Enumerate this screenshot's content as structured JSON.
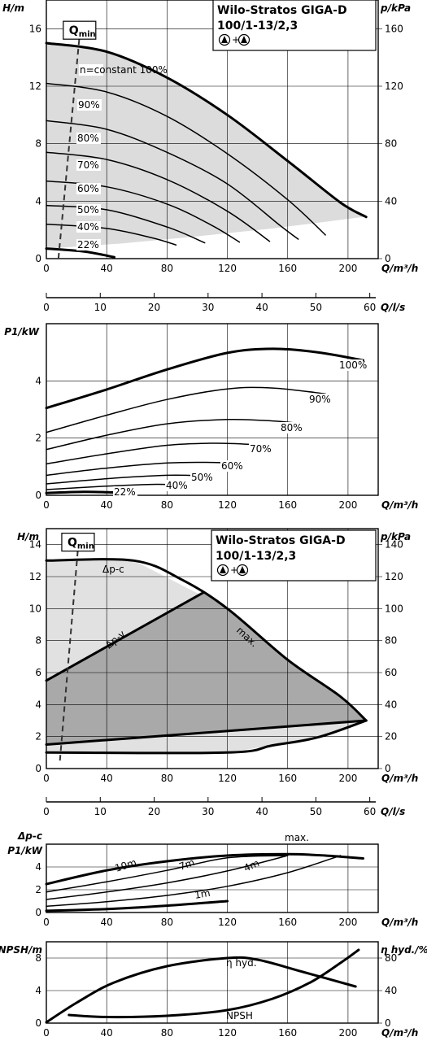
{
  "chart_data": [
    {
      "type": "line",
      "id": "hq1",
      "title": "Wilo-Stratos GIGA-D",
      "subtitle": "100/1-13/2,3",
      "ylabel": "H/m",
      "y2label": "p/kPa",
      "xlabel": "Q/m³/h",
      "xlim": [
        0,
        220
      ],
      "ylim": [
        0,
        18
      ],
      "y2lim": [
        0,
        180
      ],
      "xticks": [
        0,
        40,
        80,
        120,
        160,
        200
      ],
      "yticks": [
        0,
        4,
        8,
        12,
        16
      ],
      "y2ticks": [
        0,
        40,
        80,
        120,
        160
      ],
      "grid": true,
      "qmin_label": "Q",
      "qmin_sub": "min",
      "qmin_line": [
        [
          8,
          0
        ],
        [
          22,
          15.5
        ]
      ],
      "band_lower": [
        [
          0,
          0.7
        ],
        [
          50,
          1.05
        ],
        [
          100,
          1.55
        ],
        [
          150,
          2.1
        ],
        [
          210,
          2.9
        ]
      ],
      "series": [
        {
          "name": "n=constant 100%",
          "weight": "thick",
          "x": [
            0,
            40,
            80,
            120,
            160,
            195,
            212
          ],
          "y": [
            15,
            14.4,
            12.6,
            10,
            6.8,
            3.9,
            2.9
          ]
        },
        {
          "name": "90%",
          "weight": "thin",
          "x": [
            0,
            40,
            80,
            120,
            160,
            185
          ],
          "y": [
            12.2,
            11.6,
            9.9,
            7.3,
            4.1,
            1.65
          ]
        },
        {
          "name": "80%",
          "weight": "thin",
          "x": [
            0,
            40,
            80,
            120,
            155,
            167
          ],
          "y": [
            9.6,
            9,
            7.4,
            5.2,
            2.3,
            1.35
          ]
        },
        {
          "name": "70%",
          "weight": "thin",
          "x": [
            0,
            40,
            80,
            120,
            148
          ],
          "y": [
            7.4,
            6.9,
            5.5,
            3.3,
            1.2
          ]
        },
        {
          "name": "60%",
          "weight": "thin",
          "x": [
            0,
            40,
            80,
            110,
            128
          ],
          "y": [
            5.4,
            5,
            3.8,
            2.3,
            1.15
          ]
        },
        {
          "name": "50%",
          "weight": "thin",
          "x": [
            0,
            40,
            80,
            105
          ],
          "y": [
            3.7,
            3.4,
            2.2,
            1.1
          ]
        },
        {
          "name": "40%",
          "weight": "thin",
          "x": [
            0,
            40,
            70,
            86
          ],
          "y": [
            2.4,
            2.1,
            1.45,
            0.95
          ]
        },
        {
          "name": "22%",
          "weight": "thick",
          "x": [
            0,
            25,
            45
          ],
          "y": [
            0.7,
            0.5,
            0.1
          ]
        }
      ]
    },
    {
      "type": "axis",
      "id": "ls1",
      "xlabel": "Q/l/s",
      "xlim": [
        0,
        61.11
      ],
      "xticks": [
        0,
        10,
        20,
        30,
        40,
        50,
        60
      ]
    },
    {
      "type": "line",
      "id": "p1a",
      "ylabel": "P1/kW",
      "xlabel": "Q/m³/h",
      "xlim": [
        0,
        220
      ],
      "ylim": [
        0,
        6
      ],
      "xticks": [
        0,
        40,
        80,
        120,
        160,
        200
      ],
      "yticks": [
        0,
        2,
        4
      ],
      "grid": true,
      "series": [
        {
          "name": "100%",
          "weight": "thick",
          "x": [
            0,
            40,
            80,
            120,
            150,
            180,
            210
          ],
          "y": [
            3.05,
            3.7,
            4.4,
            4.98,
            5.12,
            5.0,
            4.72
          ]
        },
        {
          "name": "90%",
          "weight": "thin",
          "x": [
            0,
            40,
            80,
            120,
            150,
            185
          ],
          "y": [
            2.2,
            2.8,
            3.35,
            3.72,
            3.75,
            3.55
          ]
        },
        {
          "name": "80%",
          "weight": "thin",
          "x": [
            0,
            40,
            80,
            120,
            150,
            170
          ],
          "y": [
            1.6,
            2.1,
            2.5,
            2.65,
            2.6,
            2.5
          ]
        },
        {
          "name": "70%",
          "weight": "thin",
          "x": [
            0,
            40,
            80,
            110,
            135,
            150
          ],
          "y": [
            1.1,
            1.45,
            1.75,
            1.82,
            1.78,
            1.7
          ]
        },
        {
          "name": "60%",
          "weight": "thin",
          "x": [
            0,
            40,
            80,
            110,
            130
          ],
          "y": [
            0.7,
            0.95,
            1.13,
            1.15,
            1.1
          ]
        },
        {
          "name": "50%",
          "weight": "thin",
          "x": [
            0,
            40,
            80,
            105
          ],
          "y": [
            0.4,
            0.58,
            0.7,
            0.68
          ]
        },
        {
          "name": "40%",
          "weight": "thin",
          "x": [
            0,
            40,
            70,
            85
          ],
          "y": [
            0.2,
            0.32,
            0.38,
            0.37
          ]
        },
        {
          "name": "22%",
          "weight": "thick",
          "x": [
            0,
            25,
            45
          ],
          "y": [
            0.08,
            0.12,
            0.1
          ]
        }
      ]
    },
    {
      "type": "area",
      "id": "hq2",
      "title": "Wilo-Stratos GIGA-D",
      "subtitle": "100/1-13/2,3",
      "ylabel": "H/m",
      "y2label": "p/kPa",
      "xlabel": "Q/m³/h",
      "xlim": [
        0,
        220
      ],
      "ylim": [
        0,
        15
      ],
      "y2lim": [
        0,
        150
      ],
      "xticks": [
        0,
        40,
        80,
        120,
        160,
        200
      ],
      "yticks": [
        0,
        2,
        4,
        6,
        8,
        10,
        12,
        14
      ],
      "y2ticks": [
        0,
        20,
        40,
        60,
        80,
        100,
        120,
        140
      ],
      "grid": true,
      "qmin_label": "Q",
      "qmin_sub": "min",
      "qmin_line": [
        [
          9,
          0.5
        ],
        [
          21,
          13.8
        ]
      ],
      "outer_region": [
        [
          0,
          13
        ],
        [
          58,
          13
        ],
        [
          120,
          10
        ],
        [
          160,
          6.8
        ],
        [
          195,
          4.5
        ],
        [
          212,
          3
        ],
        [
          180,
          1.95
        ],
        [
          150,
          1.45
        ],
        [
          120,
          1
        ],
        [
          0,
          1
        ]
      ],
      "inner_region": [
        [
          0,
          5.5
        ],
        [
          104,
          11
        ],
        [
          120,
          10
        ],
        [
          160,
          6.8
        ],
        [
          195,
          4.5
        ],
        [
          212,
          3
        ],
        [
          0,
          1.5
        ]
      ],
      "annotations": [
        "Δp-c",
        "Δp-v",
        "max."
      ],
      "lines": [
        {
          "name": "max.",
          "weight": "thick",
          "x": [
            0,
            58,
            90,
            120,
            160,
            195,
            212
          ],
          "y": [
            13,
            13,
            11.8,
            10,
            6.8,
            4.5,
            3
          ]
        },
        {
          "name": "Δp-v",
          "weight": "thick",
          "x": [
            0,
            104
          ],
          "y": [
            5.5,
            11
          ]
        },
        {
          "name": "min",
          "weight": "thick",
          "x": [
            0,
            120,
            150,
            180,
            212
          ],
          "y": [
            1,
            1,
            1.45,
            1.95,
            3
          ]
        },
        {
          "name": "lower",
          "weight": "thick",
          "x": [
            0,
            212
          ],
          "y": [
            1.5,
            3
          ]
        }
      ]
    },
    {
      "type": "axis",
      "id": "ls2",
      "xlabel": "Q/l/s",
      "xlim": [
        0,
        61.11
      ],
      "xticks": [
        0,
        10,
        20,
        30,
        40,
        50,
        60
      ]
    },
    {
      "type": "line",
      "id": "p1b",
      "ylabel_top": "Δp-c",
      "ylabel": "P1/kW",
      "xlabel": "Q/m³/h",
      "xlim": [
        0,
        220
      ],
      "ylim": [
        0,
        6
      ],
      "xticks": [
        0,
        40,
        80,
        120,
        160,
        200
      ],
      "yticks": [
        0,
        2,
        4
      ],
      "grid": true,
      "series": [
        {
          "name": "max.",
          "weight": "thick",
          "x": [
            0,
            40,
            80,
            120,
            160,
            185,
            210
          ],
          "y": [
            2.5,
            3.7,
            4.5,
            5.0,
            5.12,
            5.0,
            4.75
          ]
        },
        {
          "name": "10m",
          "weight": "thin",
          "x": [
            0,
            40,
            80,
            120,
            160
          ],
          "y": [
            1.8,
            2.7,
            3.7,
            4.8,
            5.0
          ]
        },
        {
          "name": "7m",
          "weight": "thin",
          "x": [
            0,
            40,
            80,
            120,
            160
          ],
          "y": [
            1.15,
            1.8,
            2.6,
            3.65,
            5.0
          ]
        },
        {
          "name": "4m",
          "weight": "thin",
          "x": [
            0,
            40,
            80,
            120,
            160,
            195
          ],
          "y": [
            0.55,
            0.95,
            1.5,
            2.3,
            3.5,
            5.0
          ]
        },
        {
          "name": "1m",
          "weight": "thick",
          "x": [
            0,
            40,
            80,
            120
          ],
          "y": [
            0.15,
            0.3,
            0.6,
            1.0
          ]
        }
      ]
    },
    {
      "type": "line",
      "id": "np",
      "ylabel": "NPSH/m",
      "y2label": "η hyd./%",
      "xlabel": "Q/m³/h",
      "xlim": [
        0,
        220
      ],
      "ylim": [
        0,
        10
      ],
      "y2lim": [
        0,
        100
      ],
      "xticks": [
        0,
        40,
        80,
        120,
        160,
        200
      ],
      "yticks": [
        0,
        4,
        8
      ],
      "y2ticks": [
        0,
        40,
        80
      ],
      "grid": true,
      "series": [
        {
          "name": "η hyd.",
          "weight": "thick",
          "axis": "right",
          "x": [
            0,
            20,
            45,
            80,
            120,
            140,
            170,
            205
          ],
          "y": [
            1,
            25,
            50,
            70,
            80,
            78,
            63,
            45
          ]
        },
        {
          "name": "NPSH",
          "weight": "thick",
          "axis": "left",
          "x": [
            15,
            40,
            80,
            120,
            150,
            175,
            195,
            207
          ],
          "y": [
            1.0,
            0.75,
            0.9,
            1.6,
            3.0,
            5.0,
            7.4,
            9.0
          ]
        }
      ]
    }
  ]
}
